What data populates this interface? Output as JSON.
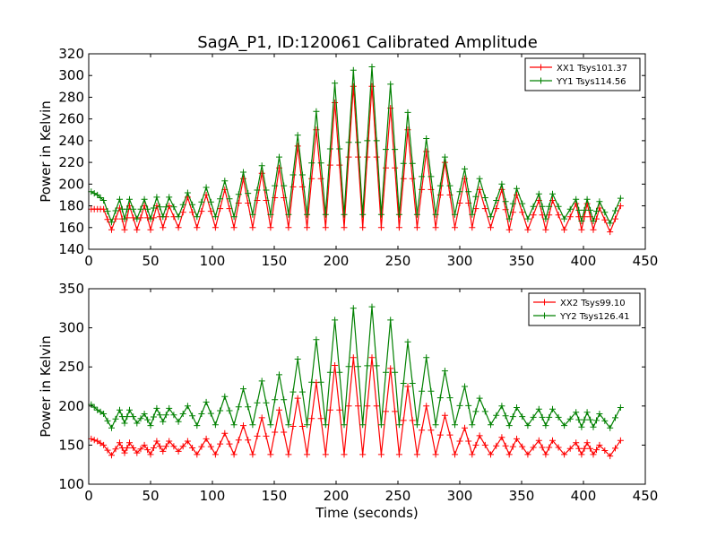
{
  "title": "SagA_P1, ID:120061 Calibrated Amplitude",
  "chart_data": [
    {
      "type": "line",
      "ylabel": "Power in Kelvin",
      "xlabel": "",
      "xlim": [
        0,
        450
      ],
      "ylim": [
        140,
        320
      ],
      "xticks": [
        "0",
        "50",
        "100",
        "150",
        "200",
        "250",
        "300",
        "350",
        "400",
        "450"
      ],
      "yticks": [
        "140",
        "160",
        "180",
        "200",
        "220",
        "240",
        "260",
        "280",
        "300",
        "320"
      ],
      "legend": "top-right",
      "grid": false,
      "x": [
        2,
        12,
        25,
        33,
        45,
        55,
        65,
        80,
        95,
        110,
        125,
        140,
        154,
        169,
        184,
        199,
        214,
        229,
        244,
        258,
        273,
        288,
        304,
        316,
        334,
        346,
        364,
        375,
        394,
        403,
        413,
        430
      ],
      "series": [
        {
          "name": "XX1 Tsys101.37",
          "color": "#ff0000",
          "min": [
            177,
            158,
            158,
            158,
            158,
            160,
            160,
            160,
            160,
            160,
            160,
            160,
            160,
            160,
            160,
            160,
            160,
            160,
            160,
            160,
            160,
            160,
            160,
            160,
            158,
            158,
            158,
            158,
            158,
            158,
            156,
            175
          ],
          "max": [
            177,
            177,
            178,
            180,
            180,
            180,
            180,
            188,
            190,
            195,
            205,
            210,
            215,
            235,
            250,
            275,
            290,
            290,
            270,
            250,
            230,
            220,
            205,
            195,
            195,
            190,
            185,
            185,
            182,
            182,
            178,
            180
          ]
        },
        {
          "name": "YY1 Tsys114.56",
          "color": "#008000",
          "min": [
            190,
            165,
            168,
            168,
            168,
            170,
            170,
            170,
            170,
            170,
            172,
            172,
            172,
            172,
            172,
            172,
            172,
            172,
            172,
            172,
            172,
            172,
            172,
            170,
            168,
            168,
            168,
            168,
            166,
            166,
            164,
            185
          ],
          "max": [
            193,
            185,
            186,
            186,
            186,
            188,
            188,
            192,
            197,
            203,
            211,
            217,
            225,
            245,
            267,
            293,
            305,
            308,
            292,
            266,
            242,
            225,
            214,
            205,
            200,
            196,
            191,
            191,
            186,
            186,
            184,
            187
          ]
        }
      ]
    },
    {
      "type": "line",
      "ylabel": "Power in Kelvin",
      "xlabel": "Time (seconds)",
      "xlim": [
        0,
        450
      ],
      "ylim": [
        100,
        350
      ],
      "xticks": [
        "0",
        "50",
        "100",
        "150",
        "200",
        "250",
        "300",
        "350",
        "400",
        "450"
      ],
      "yticks": [
        "100",
        "150",
        "200",
        "250",
        "300",
        "350"
      ],
      "legend": "top-right",
      "grid": false,
      "x": [
        2,
        12,
        25,
        33,
        45,
        55,
        65,
        80,
        95,
        110,
        125,
        140,
        154,
        169,
        184,
        199,
        214,
        229,
        244,
        258,
        273,
        288,
        304,
        316,
        334,
        346,
        364,
        375,
        394,
        403,
        413,
        430
      ],
      "series": [
        {
          "name": "XX2 Tsys99.10",
          "color": "#ff0000",
          "min": [
            155,
            137,
            140,
            140,
            138,
            142,
            142,
            138,
            138,
            138,
            138,
            138,
            138,
            138,
            138,
            138,
            138,
            138,
            138,
            138,
            138,
            138,
            138,
            138,
            138,
            138,
            138,
            138,
            138,
            138,
            136,
            153
          ],
          "max": [
            158,
            150,
            153,
            153,
            150,
            155,
            155,
            155,
            158,
            165,
            175,
            185,
            195,
            210,
            230,
            252,
            262,
            262,
            248,
            225,
            200,
            188,
            172,
            162,
            160,
            158,
            156,
            156,
            153,
            153,
            150,
            156
          ]
        },
        {
          "name": "YY2 Tsys126.41",
          "color": "#008000",
          "min": [
            195,
            172,
            178,
            178,
            175,
            180,
            180,
            175,
            176,
            176,
            176,
            176,
            176,
            176,
            176,
            176,
            176,
            176,
            176,
            176,
            176,
            176,
            176,
            176,
            175,
            175,
            175,
            175,
            173,
            173,
            172,
            192
          ],
          "max": [
            202,
            190,
            195,
            195,
            190,
            197,
            197,
            200,
            205,
            212,
            222,
            232,
            240,
            260,
            285,
            310,
            325,
            327,
            310,
            282,
            262,
            245,
            225,
            210,
            200,
            198,
            196,
            196,
            192,
            192,
            190,
            198
          ]
        }
      ]
    }
  ]
}
